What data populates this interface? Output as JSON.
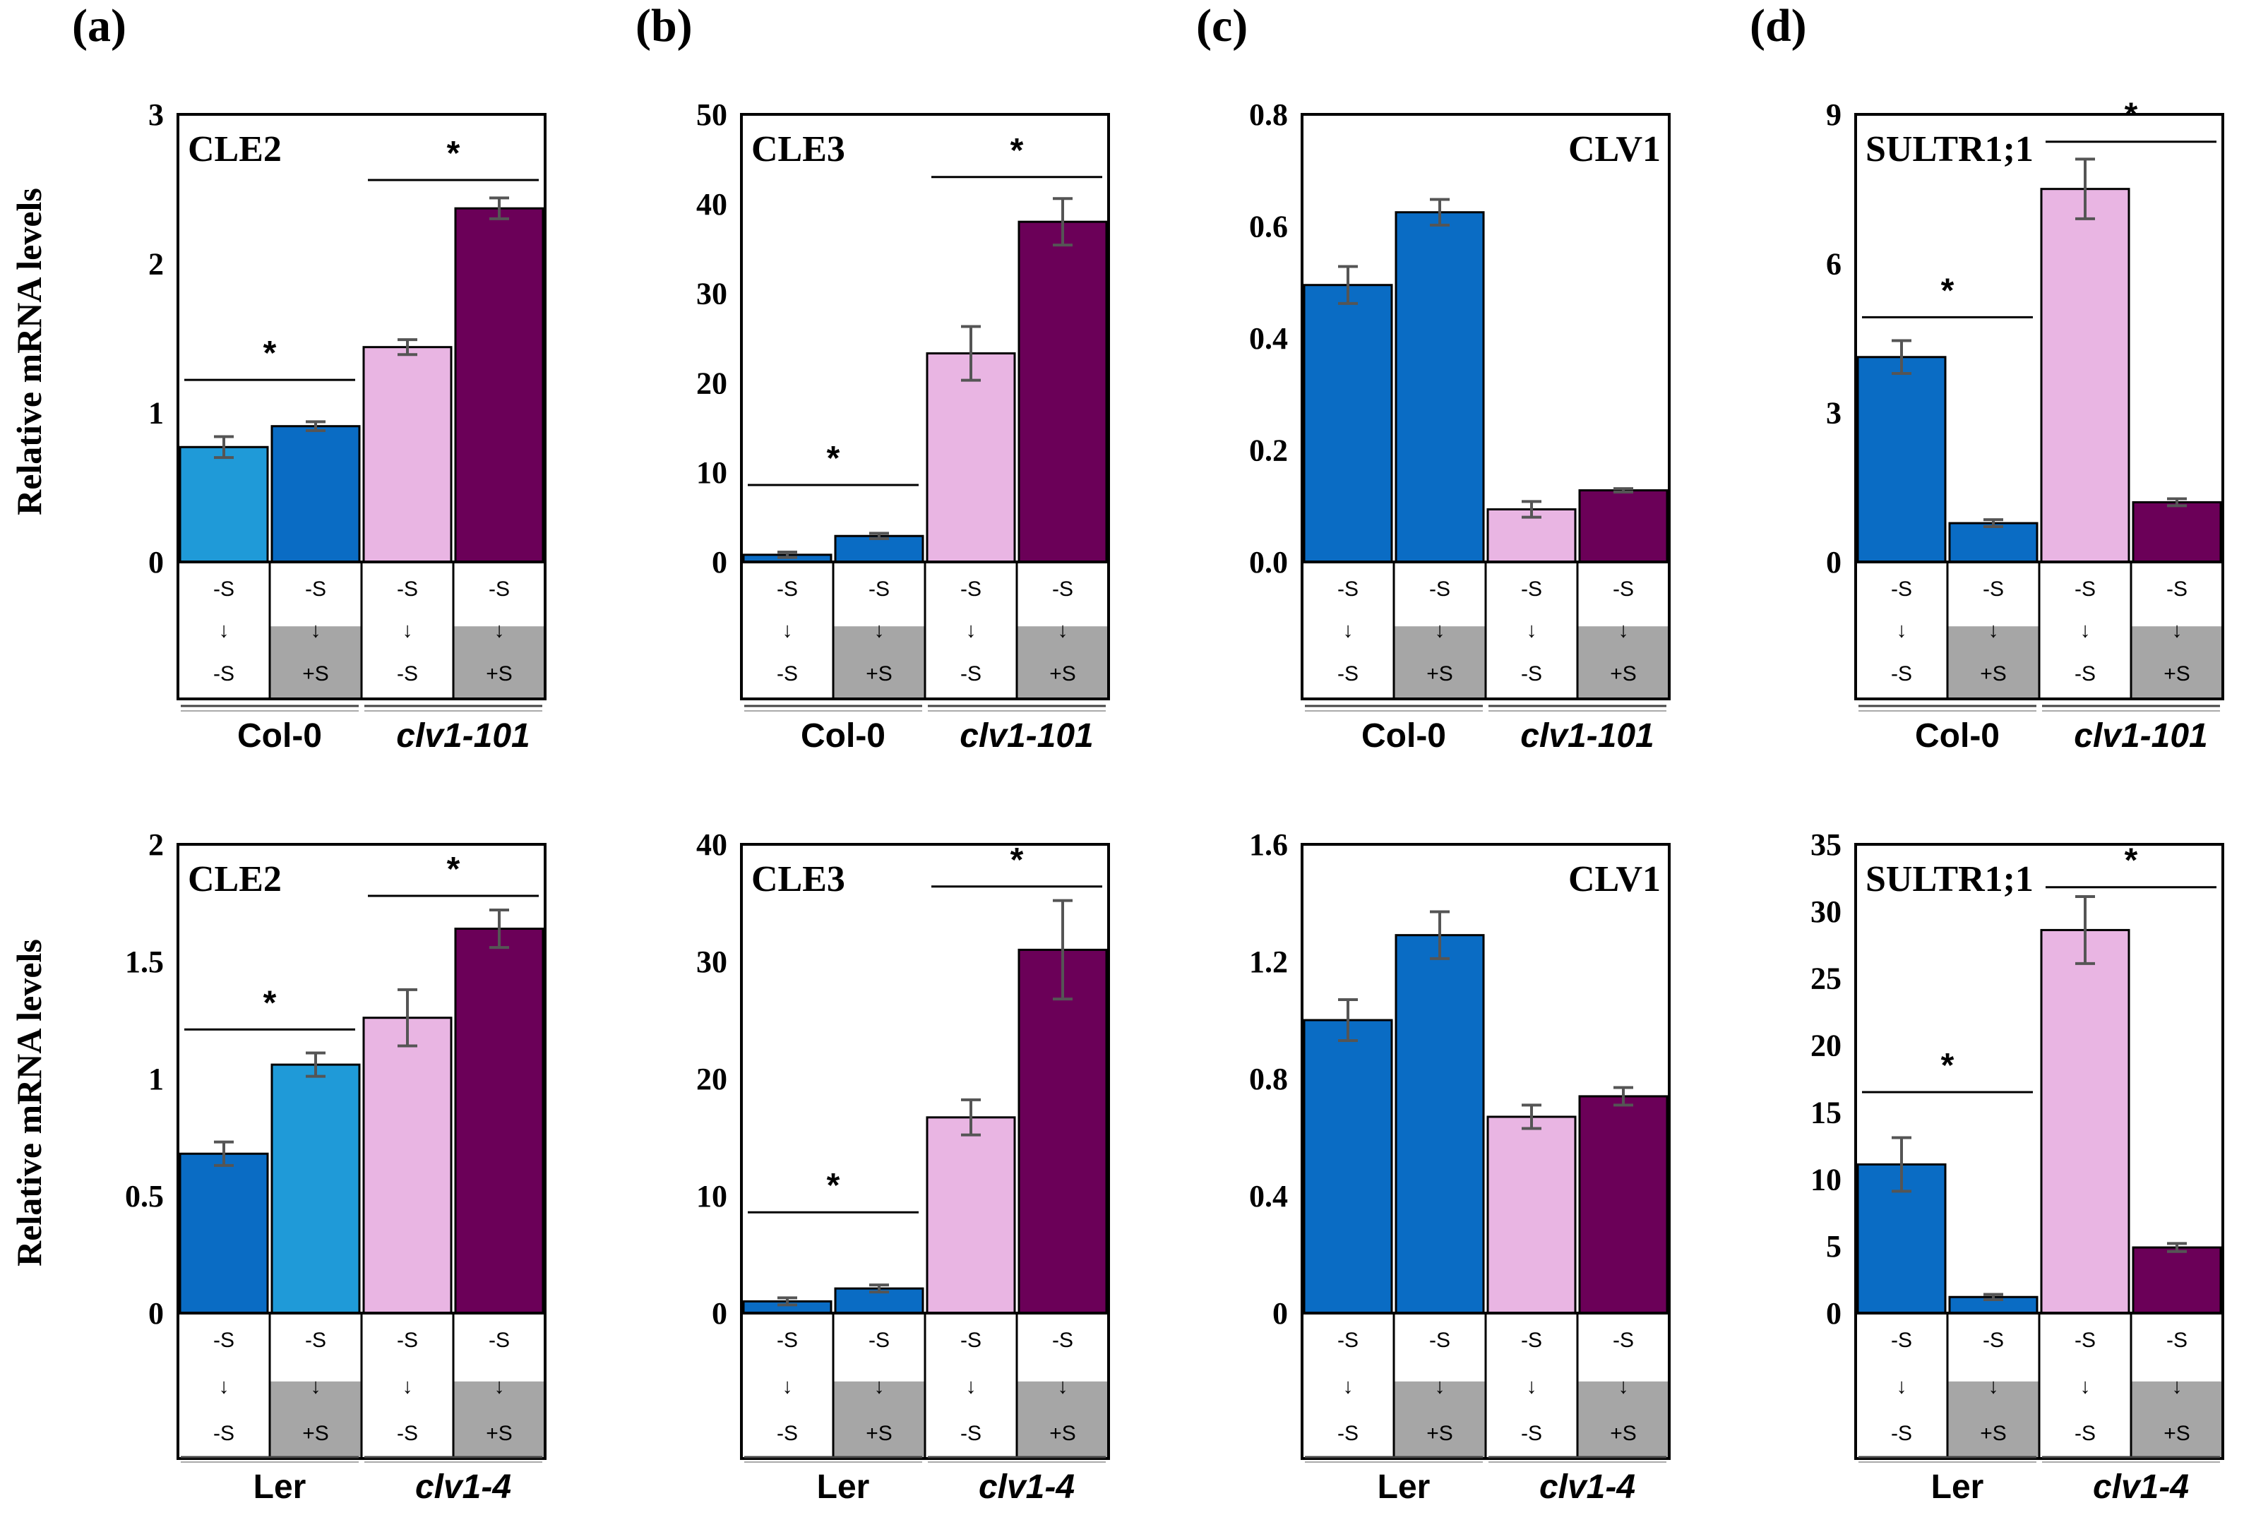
{
  "figure": {
    "ylabel": "Relative mRNA levels",
    "condition_labels": {
      "top": "-S",
      "arrow": "↓",
      "bottom_minus": "-S",
      "bottom_plus": "+S"
    },
    "colors": {
      "light_blue": "#1f9ad8",
      "blue": "#0a6cc4",
      "pink": "#e9b5e3",
      "purple": "#6b0058",
      "gray": "#a6a6a6",
      "error": "#555555"
    }
  },
  "chart_data": [
    {
      "panel_label": "(a)",
      "title": "CLE2",
      "title_pos": "left",
      "type": "bar",
      "ylim": [
        0,
        3
      ],
      "yticks": [
        "0",
        "1",
        "2",
        "3"
      ],
      "categories": [
        "-S→-S",
        "-S→+S",
        "-S→-S",
        "-S→+S"
      ],
      "values": [
        0.77,
        0.91,
        1.44,
        2.37
      ],
      "errors": [
        0.07,
        0.03,
        0.05,
        0.07
      ],
      "bar_colors": [
        "light_blue",
        "blue",
        "pink",
        "purple"
      ],
      "genotypes": [
        "Col-0",
        "clv1-101"
      ],
      "genotype_italic": [
        false,
        true
      ],
      "significance": [
        {
          "bars": [
            0,
            1
          ],
          "y": 1.22,
          "label": "*"
        },
        {
          "bars": [
            2,
            3
          ],
          "y": 2.56,
          "label": "*"
        }
      ]
    },
    {
      "panel_label": "(b)",
      "title": "CLE3",
      "title_pos": "left",
      "type": "bar",
      "ylim": [
        0,
        50
      ],
      "yticks": [
        "0",
        "10",
        "20",
        "30",
        "40",
        "50"
      ],
      "categories": [
        "-S→-S",
        "-S→+S",
        "-S→-S",
        "-S→+S"
      ],
      "values": [
        0.8,
        2.9,
        23.3,
        38.0
      ],
      "errors": [
        0.3,
        0.3,
        3.0,
        2.6
      ],
      "bar_colors": [
        "blue",
        "blue",
        "pink",
        "purple"
      ],
      "genotypes": [
        "Col-0",
        "clv1-101"
      ],
      "genotype_italic": [
        false,
        true
      ],
      "significance": [
        {
          "bars": [
            0,
            1
          ],
          "y": 8.6,
          "label": "*"
        },
        {
          "bars": [
            2,
            3
          ],
          "y": 43.0,
          "label": "*"
        }
      ]
    },
    {
      "panel_label": "(c)",
      "title": "CLV1",
      "title_pos": "right",
      "type": "bar",
      "ylim": [
        0,
        0.8
      ],
      "yticks": [
        "0.0",
        "0.2",
        "0.4",
        "0.6",
        "0.8"
      ],
      "categories": [
        "-S→-S",
        "-S→+S",
        "-S→-S",
        "-S→+S"
      ],
      "values": [
        0.495,
        0.625,
        0.094,
        0.128
      ],
      "errors": [
        0.033,
        0.023,
        0.014,
        0.003
      ],
      "bar_colors": [
        "blue",
        "blue",
        "pink",
        "purple"
      ],
      "genotypes": [
        "Col-0",
        "clv1-101"
      ],
      "genotype_italic": [
        false,
        true
      ],
      "significance": []
    },
    {
      "panel_label": "(d)",
      "title": "SULTR1;1",
      "title_pos": "left",
      "type": "bar",
      "ylim": [
        0,
        9
      ],
      "yticks": [
        "0",
        "3",
        "6",
        "9"
      ],
      "categories": [
        "-S→-S",
        "-S→+S",
        "-S→-S",
        "-S→+S"
      ],
      "values": [
        4.12,
        0.78,
        7.5,
        1.2
      ],
      "errors": [
        0.33,
        0.07,
        0.6,
        0.07
      ],
      "bar_colors": [
        "blue",
        "blue",
        "pink",
        "purple"
      ],
      "genotypes": [
        "Col-0",
        "clv1-101"
      ],
      "genotype_italic": [
        false,
        true
      ],
      "significance": [
        {
          "bars": [
            0,
            1
          ],
          "y": 4.92,
          "label": "*"
        },
        {
          "bars": [
            2,
            3
          ],
          "y": 8.45,
          "label": "*"
        }
      ]
    },
    {
      "panel_label": "",
      "title": "CLE2",
      "title_pos": "left",
      "type": "bar",
      "ylim": [
        0,
        2
      ],
      "yticks": [
        "0",
        "0.5",
        "1",
        "1.5",
        "2"
      ],
      "categories": [
        "-S→-S",
        "-S→+S",
        "-S→-S",
        "-S→+S"
      ],
      "values": [
        0.68,
        1.06,
        1.26,
        1.64
      ],
      "errors": [
        0.05,
        0.05,
        0.12,
        0.08
      ],
      "bar_colors": [
        "blue",
        "light_blue",
        "pink",
        "purple"
      ],
      "genotypes": [
        "Ler",
        "clv1-4"
      ],
      "genotype_italic": [
        false,
        true
      ],
      "significance": [
        {
          "bars": [
            0,
            1
          ],
          "y": 1.21,
          "label": "*"
        },
        {
          "bars": [
            2,
            3
          ],
          "y": 1.78,
          "label": "*"
        }
      ]
    },
    {
      "panel_label": "",
      "title": "CLE3",
      "title_pos": "left",
      "type": "bar",
      "ylim": [
        0,
        40
      ],
      "yticks": [
        "0",
        "10",
        "20",
        "30",
        "40"
      ],
      "categories": [
        "-S→-S",
        "-S→+S",
        "-S→-S",
        "-S→+S"
      ],
      "values": [
        1.0,
        2.1,
        16.7,
        31.0
      ],
      "errors": [
        0.3,
        0.3,
        1.5,
        4.2
      ],
      "bar_colors": [
        "blue",
        "blue",
        "pink",
        "purple"
      ],
      "genotypes": [
        "Ler",
        "clv1-4"
      ],
      "genotype_italic": [
        false,
        true
      ],
      "significance": [
        {
          "bars": [
            0,
            1
          ],
          "y": 8.6,
          "label": "*"
        },
        {
          "bars": [
            2,
            3
          ],
          "y": 36.4,
          "label": "*"
        }
      ]
    },
    {
      "panel_label": "",
      "title": "CLV1",
      "title_pos": "right",
      "type": "bar",
      "ylim": [
        0,
        1.6
      ],
      "yticks": [
        "0",
        "0.4",
        "0.8",
        "1.2",
        "1.6"
      ],
      "categories": [
        "-S→-S",
        "-S→+S",
        "-S→-S",
        "-S→+S"
      ],
      "values": [
        1.0,
        1.29,
        0.67,
        0.74
      ],
      "errors": [
        0.07,
        0.08,
        0.04,
        0.03
      ],
      "bar_colors": [
        "blue",
        "blue",
        "pink",
        "purple"
      ],
      "genotypes": [
        "Ler",
        "clv1-4"
      ],
      "genotype_italic": [
        false,
        true
      ],
      "significance": []
    },
    {
      "panel_label": "",
      "title": "SULTR1;1",
      "title_pos": "left",
      "type": "bar",
      "ylim": [
        0,
        35
      ],
      "yticks": [
        "0",
        "5",
        "10",
        "15",
        "20",
        "25",
        "30",
        "35"
      ],
      "categories": [
        "-S→-S",
        "-S→+S",
        "-S→-S",
        "-S→+S"
      ],
      "values": [
        11.1,
        1.2,
        28.6,
        4.9
      ],
      "errors": [
        2.0,
        0.2,
        2.5,
        0.3
      ],
      "bar_colors": [
        "blue",
        "blue",
        "pink",
        "purple"
      ],
      "genotypes": [
        "Ler",
        "clv1-4"
      ],
      "genotype_italic": [
        false,
        true
      ],
      "significance": [
        {
          "bars": [
            0,
            1
          ],
          "y": 16.5,
          "label": "*"
        },
        {
          "bars": [
            2,
            3
          ],
          "y": 31.8,
          "label": "*"
        }
      ]
    }
  ]
}
